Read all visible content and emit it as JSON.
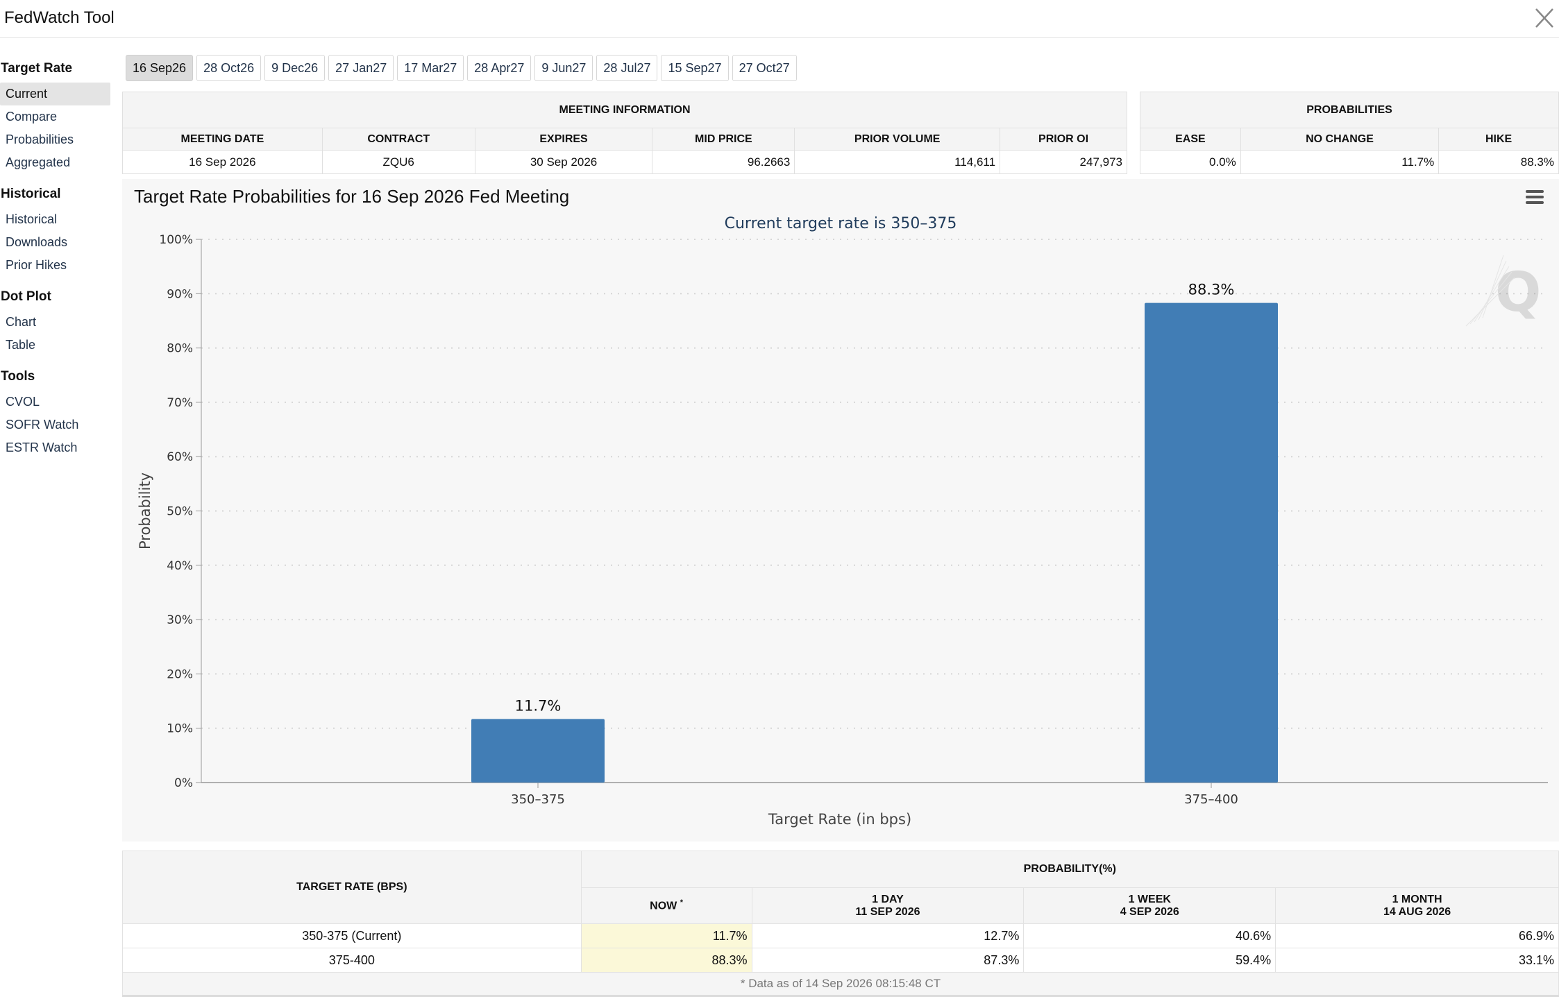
{
  "app": {
    "title": "FedWatch Tool"
  },
  "sidebar": {
    "sections": [
      {
        "heading": "Target Rate",
        "items": [
          "Current",
          "Compare",
          "Probabilities",
          "Aggregated"
        ]
      },
      {
        "heading": "Historical",
        "items": [
          "Historical",
          "Downloads",
          "Prior Hikes"
        ]
      },
      {
        "heading": "Dot Plot",
        "items": [
          "Chart",
          "Table"
        ]
      },
      {
        "heading": "Tools",
        "items": [
          "CVOL",
          "SOFR Watch",
          "ESTR Watch"
        ]
      }
    ]
  },
  "tabs": [
    "16 Sep26",
    "28 Oct26",
    "9 Dec26",
    "27 Jan27",
    "17 Mar27",
    "28 Apr27",
    "9 Jun27",
    "28 Jul27",
    "15 Sep27",
    "27 Oct27"
  ],
  "meeting_info": {
    "caption": "MEETING INFORMATION",
    "headers": [
      "MEETING DATE",
      "CONTRACT",
      "EXPIRES",
      "MID PRICE",
      "PRIOR VOLUME",
      "PRIOR OI"
    ],
    "row": [
      "16 Sep 2026",
      "ZQU6",
      "30 Sep 2026",
      "96.2663",
      "114,611",
      "247,973"
    ]
  },
  "probabilities": {
    "caption": "PROBABILITIES",
    "headers": [
      "EASE",
      "NO CHANGE",
      "HIKE"
    ],
    "row": [
      "0.0%",
      "11.7%",
      "88.3%"
    ]
  },
  "chart_data": {
    "type": "bar",
    "title": "Target Rate Probabilities for 16 Sep 2026 Fed Meeting",
    "subtitle": "Current target rate is 350–375",
    "xlabel": "Target Rate (in bps)",
    "ylabel": "Probability",
    "categories": [
      "350–375",
      "375–400"
    ],
    "values": [
      11.7,
      88.3
    ],
    "data_labels": [
      "11.7%",
      "88.3%"
    ],
    "ylim": [
      0,
      100
    ],
    "yticks": [
      "0%",
      "10%",
      "20%",
      "30%",
      "40%",
      "50%",
      "60%",
      "70%",
      "80%",
      "90%",
      "100%"
    ],
    "grid": true,
    "bar_color": "#417db5"
  },
  "rate_table": {
    "target_header": "TARGET RATE (BPS)",
    "prob_header": "PROBABILITY(%)",
    "col_headers": [
      {
        "line1": "NOW",
        "line2": ""
      },
      {
        "line1": "1 DAY",
        "line2": "11 SEP 2026"
      },
      {
        "line1": "1 WEEK",
        "line2": "4 SEP 2026"
      },
      {
        "line1": "1 MONTH",
        "line2": "14 AUG 2026"
      }
    ],
    "rows": [
      {
        "rate": "350-375 (Current)",
        "values": [
          "11.7%",
          "12.7%",
          "40.6%",
          "66.9%"
        ]
      },
      {
        "rate": "375-400",
        "values": [
          "88.3%",
          "87.3%",
          "59.4%",
          "33.1%"
        ]
      }
    ],
    "footnote": "* Data as of 14 Sep 2026 08:15:48 CT",
    "star": "*"
  }
}
